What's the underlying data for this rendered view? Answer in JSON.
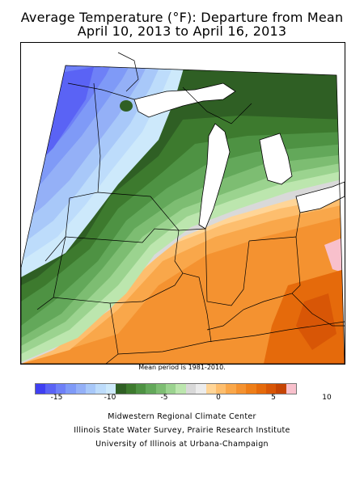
{
  "title": {
    "line1": "Average Temperature (°F): Departure from Mean",
    "line2": "April 10, 2013 to April 16, 2013"
  },
  "mean_period_note": "Mean period is 1981-2010.",
  "legend": {
    "colors": [
      "#3f3ff2",
      "#5a63f5",
      "#6e80f7",
      "#7f9af7",
      "#94b0f7",
      "#a8c8f9",
      "#bddcfb",
      "#cde9fb",
      "#2f5f24",
      "#3d7a2e",
      "#4e9243",
      "#63a85a",
      "#7dbd72",
      "#9bd38f",
      "#bce6ae",
      "#d9d9d9",
      "#ececec",
      "#ffd597",
      "#fdbe6e",
      "#f9a74a",
      "#f49230",
      "#ee7e18",
      "#e56a0b",
      "#d85606",
      "#c54403",
      "#f8c0cc"
    ],
    "tick_labels": [
      "-15",
      "-10",
      "-5",
      "0",
      "5",
      "10"
    ]
  },
  "credits": {
    "line1": "Midwestern Regional Climate Center",
    "line2": "Illinois State Water Survey, Prairie Research Institute",
    "line3": "University of Illinois at Urbana-Champaign"
  }
}
